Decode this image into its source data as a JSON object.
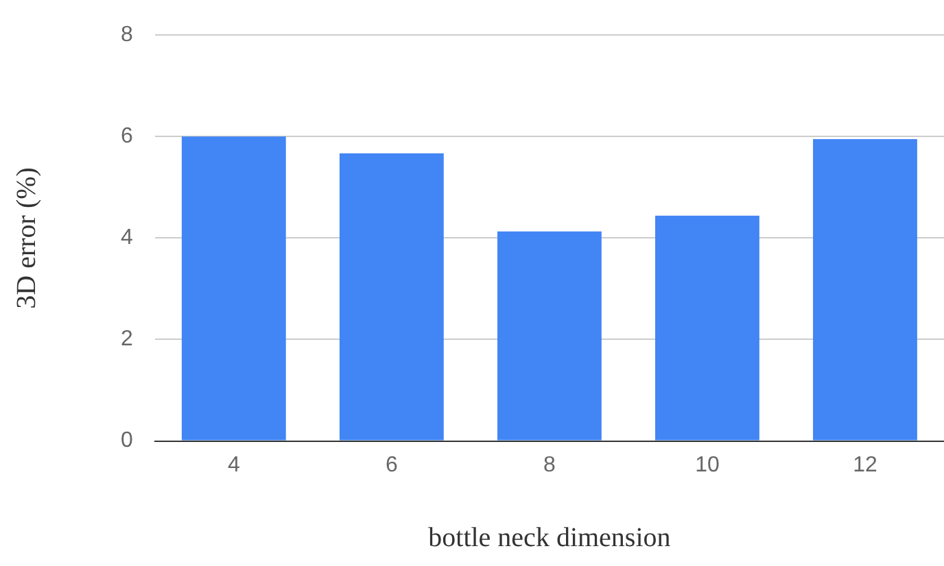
{
  "chart_data": {
    "type": "bar",
    "xlabel": "bottle neck dimension",
    "ylabel": "3D error (%)",
    "categories": [
      "4",
      "6",
      "8",
      "10",
      "12"
    ],
    "values": [
      6.0,
      5.67,
      4.13,
      4.44,
      5.95
    ],
    "color": "#4285f4",
    "ylim": [
      0,
      8
    ],
    "yticks": [
      0,
      2,
      4,
      6,
      8
    ],
    "grid": "y",
    "legend": false
  }
}
